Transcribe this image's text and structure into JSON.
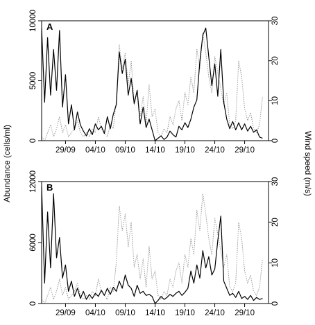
{
  "chart_data": [
    {
      "type": "line",
      "panel_label": "A",
      "xlabel": "",
      "ylabel": "Abundance (cells/ml)",
      "ylabel_right": "Wind speed (m/s)",
      "x_type": "date",
      "xlim": [
        "2016-09-25",
        "2016-11-02"
      ],
      "x_tick_labels": [
        "29/09",
        "04/10",
        "09/10",
        "14/10",
        "19/10",
        "24/10",
        "29/10"
      ],
      "x_tick_dates": [
        "2016-09-29",
        "2016-10-04",
        "2016-10-09",
        "2016-10-14",
        "2016-10-19",
        "2016-10-24",
        "2016-10-29"
      ],
      "ylim": [
        0,
        10000
      ],
      "y_ticks": [
        0,
        5000,
        10000
      ],
      "y_tick_labels": [
        "0",
        "5000",
        "10000"
      ],
      "ylim_right": [
        0,
        30
      ],
      "y_ticks_right": [
        0,
        10,
        20,
        30
      ],
      "y_tick_labels_right": [
        "0",
        "10",
        "20",
        "30"
      ],
      "series": [
        {
          "axis": "left",
          "style": "solid",
          "color": "#000000",
          "x": [
            "2016-09-25",
            "2016-09-25T12:00",
            "2016-09-26",
            "2016-09-26T12:00",
            "2016-09-27",
            "2016-09-27T12:00",
            "2016-09-28",
            "2016-09-28T12:00",
            "2016-09-29",
            "2016-09-29T12:00",
            "2016-09-30",
            "2016-09-30T12:00",
            "2016-10-01",
            "2016-10-01T12:00",
            "2016-10-02",
            "2016-10-02T12:00",
            "2016-10-03",
            "2016-10-03T12:00",
            "2016-10-04",
            "2016-10-04T12:00",
            "2016-10-05",
            "2016-10-05T12:00",
            "2016-10-06",
            "2016-10-06T12:00",
            "2016-10-07",
            "2016-10-07T12:00",
            "2016-10-08",
            "2016-10-08T12:00",
            "2016-10-09",
            "2016-10-09T12:00",
            "2016-10-10",
            "2016-10-10T12:00",
            "2016-10-11",
            "2016-10-11T12:00",
            "2016-10-12",
            "2016-10-12T12:00",
            "2016-10-13",
            "2016-10-13T12:00",
            "2016-10-14",
            "2016-10-14T12:00",
            "2016-10-15",
            "2016-10-15T12:00",
            "2016-10-16",
            "2016-10-16T12:00",
            "2016-10-17",
            "2016-10-17T12:00",
            "2016-10-18",
            "2016-10-18T12:00",
            "2016-10-19",
            "2016-10-19T12:00",
            "2016-10-20",
            "2016-10-20T12:00",
            "2016-10-21",
            "2016-10-21T12:00",
            "2016-10-22",
            "2016-10-22T12:00",
            "2016-10-23",
            "2016-10-23T12:00",
            "2016-10-24",
            "2016-10-24T12:00",
            "2016-10-25",
            "2016-10-25T12:00",
            "2016-10-26",
            "2016-10-26T12:00",
            "2016-10-27",
            "2016-10-27T12:00",
            "2016-10-28",
            "2016-10-28T12:00",
            "2016-10-29",
            "2016-10-29T12:00",
            "2016-10-30",
            "2016-10-30T12:00",
            "2016-10-31",
            "2016-10-31T12:00",
            "2016-11-01"
          ],
          "values": [
            9400,
            3200,
            8600,
            3800,
            7600,
            4200,
            9200,
            2800,
            5500,
            1400,
            3000,
            900,
            2400,
            1300,
            800,
            400,
            1000,
            500,
            1400,
            900,
            1200,
            600,
            2000,
            1000,
            2200,
            3000,
            7400,
            5600,
            6800,
            3800,
            5200,
            3100,
            4200,
            1400,
            2800,
            1100,
            1800,
            900,
            0,
            200,
            400,
            100,
            300,
            800,
            500,
            300,
            1200,
            900,
            1500,
            1100,
            1800,
            2800,
            3400,
            6600,
            8800,
            9400,
            7000,
            4600,
            6400,
            3700,
            7600,
            3200,
            1800,
            1000,
            1600,
            900,
            1500,
            900,
            1400,
            800,
            1200,
            700,
            900,
            300,
            200
          ]
        },
        {
          "axis": "right",
          "style": "dotted",
          "color": "#999999",
          "x": [
            "2016-09-25",
            "2016-09-25T12:00",
            "2016-09-26",
            "2016-09-26T12:00",
            "2016-09-27",
            "2016-09-27T12:00",
            "2016-09-28",
            "2016-09-28T12:00",
            "2016-09-29",
            "2016-09-29T12:00",
            "2016-09-30",
            "2016-09-30T12:00",
            "2016-10-01",
            "2016-10-01T12:00",
            "2016-10-02",
            "2016-10-02T12:00",
            "2016-10-03",
            "2016-10-03T12:00",
            "2016-10-04",
            "2016-10-04T12:00",
            "2016-10-05",
            "2016-10-05T12:00",
            "2016-10-06",
            "2016-10-06T12:00",
            "2016-10-07",
            "2016-10-07T12:00",
            "2016-10-08",
            "2016-10-08T12:00",
            "2016-10-09",
            "2016-10-09T12:00",
            "2016-10-10",
            "2016-10-10T12:00",
            "2016-10-11",
            "2016-10-11T12:00",
            "2016-10-12",
            "2016-10-12T12:00",
            "2016-10-13",
            "2016-10-13T12:00",
            "2016-10-14",
            "2016-10-14T12:00",
            "2016-10-15",
            "2016-10-15T12:00",
            "2016-10-16",
            "2016-10-16T12:00",
            "2016-10-17",
            "2016-10-17T12:00",
            "2016-10-18",
            "2016-10-18T12:00",
            "2016-10-19",
            "2016-10-19T12:00",
            "2016-10-20",
            "2016-10-20T12:00",
            "2016-10-21",
            "2016-10-21T12:00",
            "2016-10-22",
            "2016-10-22T12:00",
            "2016-10-23",
            "2016-10-23T12:00",
            "2016-10-24",
            "2016-10-24T12:00",
            "2016-10-25",
            "2016-10-25T12:00",
            "2016-10-26",
            "2016-10-26T12:00",
            "2016-10-27",
            "2016-10-27T12:00",
            "2016-10-28",
            "2016-10-28T12:00",
            "2016-10-29",
            "2016-10-29T12:00",
            "2016-10-30",
            "2016-10-30T12:00",
            "2016-10-31",
            "2016-10-31T12:00",
            "2016-11-01"
          ],
          "values": [
            1,
            0,
            2,
            4,
            1,
            3,
            6,
            2,
            4,
            1,
            2,
            3,
            5,
            2,
            1,
            2,
            1,
            3,
            2,
            6,
            3,
            2,
            1,
            4,
            3,
            10,
            24,
            18,
            22,
            14,
            20,
            9,
            12,
            6,
            11,
            4,
            14,
            6,
            8,
            2,
            1,
            3,
            2,
            6,
            4,
            8,
            10,
            5,
            12,
            9,
            16,
            12,
            23,
            18,
            27,
            22,
            16,
            12,
            21,
            17,
            13,
            9,
            12,
            4,
            3,
            5,
            20,
            16,
            8,
            5,
            7,
            3,
            2,
            4,
            11
          ]
        }
      ]
    },
    {
      "type": "line",
      "panel_label": "B",
      "xlabel": "",
      "ylabel": "Abundance (cells/ml)",
      "ylabel_right": "Wind speed (m/s)",
      "x_type": "date",
      "xlim": [
        "2016-09-25",
        "2016-11-02"
      ],
      "x_tick_labels": [
        "29/09",
        "04/10",
        "09/10",
        "14/10",
        "19/10",
        "24/10",
        "29/10"
      ],
      "x_tick_dates": [
        "2016-09-29",
        "2016-10-04",
        "2016-10-09",
        "2016-10-14",
        "2016-10-19",
        "2016-10-24",
        "2016-10-29"
      ],
      "ylim": [
        0,
        12000
      ],
      "y_ticks": [
        0,
        6000,
        12000
      ],
      "y_tick_labels": [
        "0",
        "6000",
        "12000"
      ],
      "ylim_right": [
        0,
        30
      ],
      "y_ticks_right": [
        0,
        10,
        20,
        30
      ],
      "y_tick_labels_right": [
        "0",
        "10",
        "20",
        "30"
      ],
      "series": [
        {
          "axis": "left",
          "style": "solid",
          "color": "#000000",
          "x": [
            "2016-09-25",
            "2016-09-25T12:00",
            "2016-09-26",
            "2016-09-26T12:00",
            "2016-09-27",
            "2016-09-27T12:00",
            "2016-09-28",
            "2016-09-28T12:00",
            "2016-09-29",
            "2016-09-29T12:00",
            "2016-09-30",
            "2016-09-30T12:00",
            "2016-10-01",
            "2016-10-01T12:00",
            "2016-10-02",
            "2016-10-02T12:00",
            "2016-10-03",
            "2016-10-03T12:00",
            "2016-10-04",
            "2016-10-04T12:00",
            "2016-10-05",
            "2016-10-05T12:00",
            "2016-10-06",
            "2016-10-06T12:00",
            "2016-10-07",
            "2016-10-07T12:00",
            "2016-10-08",
            "2016-10-08T12:00",
            "2016-10-09",
            "2016-10-09T12:00",
            "2016-10-10",
            "2016-10-10T12:00",
            "2016-10-11",
            "2016-10-11T12:00",
            "2016-10-12",
            "2016-10-12T12:00",
            "2016-10-13",
            "2016-10-13T12:00",
            "2016-10-14",
            "2016-10-14T12:00",
            "2016-10-15",
            "2016-10-15T12:00",
            "2016-10-16",
            "2016-10-16T12:00",
            "2016-10-17",
            "2016-10-17T12:00",
            "2016-10-18",
            "2016-10-18T12:00",
            "2016-10-19",
            "2016-10-19T12:00",
            "2016-10-20",
            "2016-10-20T12:00",
            "2016-10-21",
            "2016-10-21T12:00",
            "2016-10-22",
            "2016-10-22T12:00",
            "2016-10-23",
            "2016-10-23T12:00",
            "2016-10-24",
            "2016-10-24T12:00",
            "2016-10-25",
            "2016-10-25T12:00",
            "2016-10-26",
            "2016-10-26T12:00",
            "2016-10-27",
            "2016-10-27T12:00",
            "2016-10-28",
            "2016-10-28T12:00",
            "2016-10-29",
            "2016-10-29T12:00",
            "2016-10-30",
            "2016-10-30T12:00",
            "2016-10-31",
            "2016-10-31T12:00",
            "2016-11-01"
          ],
          "values": [
            11500,
            2000,
            9000,
            3500,
            10800,
            4500,
            6500,
            2500,
            3800,
            1200,
            2200,
            700,
            1500,
            500,
            1200,
            400,
            900,
            500,
            1000,
            700,
            1300,
            800,
            1500,
            900,
            1600,
            1200,
            2200,
            1500,
            2800,
            1800,
            1500,
            700,
            1800,
            1000,
            1200,
            800,
            900,
            700,
            0,
            300,
            700,
            400,
            600,
            900,
            700,
            1000,
            1200,
            800,
            1100,
            1500,
            3200,
            2000,
            3800,
            2500,
            5200,
            3500,
            4600,
            2800,
            3400,
            6200,
            8600,
            2200,
            1500,
            800,
            1000,
            600,
            1200,
            500,
            700,
            400,
            800,
            300,
            600,
            400,
            500
          ]
        },
        {
          "axis": "right",
          "style": "dotted",
          "color": "#999999",
          "x": [
            "2016-09-25",
            "2016-09-25T12:00",
            "2016-09-26",
            "2016-09-26T12:00",
            "2016-09-27",
            "2016-09-27T12:00",
            "2016-09-28",
            "2016-09-28T12:00",
            "2016-09-29",
            "2016-09-29T12:00",
            "2016-09-30",
            "2016-09-30T12:00",
            "2016-10-01",
            "2016-10-01T12:00",
            "2016-10-02",
            "2016-10-02T12:00",
            "2016-10-03",
            "2016-10-03T12:00",
            "2016-10-04",
            "2016-10-04T12:00",
            "2016-10-05",
            "2016-10-05T12:00",
            "2016-10-06",
            "2016-10-06T12:00",
            "2016-10-07",
            "2016-10-07T12:00",
            "2016-10-08",
            "2016-10-08T12:00",
            "2016-10-09",
            "2016-10-09T12:00",
            "2016-10-10",
            "2016-10-10T12:00",
            "2016-10-11",
            "2016-10-11T12:00",
            "2016-10-12",
            "2016-10-12T12:00",
            "2016-10-13",
            "2016-10-13T12:00",
            "2016-10-14",
            "2016-10-14T12:00",
            "2016-10-15",
            "2016-10-15T12:00",
            "2016-10-16",
            "2016-10-16T12:00",
            "2016-10-17",
            "2016-10-17T12:00",
            "2016-10-18",
            "2016-10-18T12:00",
            "2016-10-19",
            "2016-10-19T12:00",
            "2016-10-20",
            "2016-10-20T12:00",
            "2016-10-21",
            "2016-10-21T12:00",
            "2016-10-22",
            "2016-10-22T12:00",
            "2016-10-23",
            "2016-10-23T12:00",
            "2016-10-24",
            "2016-10-24T12:00",
            "2016-10-25",
            "2016-10-25T12:00",
            "2016-10-26",
            "2016-10-26T12:00",
            "2016-10-27",
            "2016-10-27T12:00",
            "2016-10-28",
            "2016-10-28T12:00",
            "2016-10-29",
            "2016-10-29T12:00",
            "2016-10-30",
            "2016-10-30T12:00",
            "2016-10-31",
            "2016-10-31T12:00",
            "2016-11-01"
          ],
          "values": [
            1,
            0,
            2,
            4,
            1,
            3,
            6,
            2,
            4,
            1,
            2,
            3,
            5,
            2,
            1,
            2,
            1,
            3,
            2,
            6,
            3,
            2,
            1,
            4,
            3,
            10,
            24,
            18,
            22,
            14,
            20,
            9,
            12,
            6,
            11,
            4,
            14,
            6,
            8,
            2,
            1,
            3,
            2,
            6,
            4,
            8,
            10,
            5,
            12,
            9,
            16,
            12,
            23,
            18,
            27,
            22,
            16,
            12,
            21,
            17,
            13,
            9,
            12,
            4,
            3,
            5,
            20,
            16,
            8,
            5,
            7,
            3,
            2,
            4,
            11
          ]
        }
      ]
    }
  ]
}
